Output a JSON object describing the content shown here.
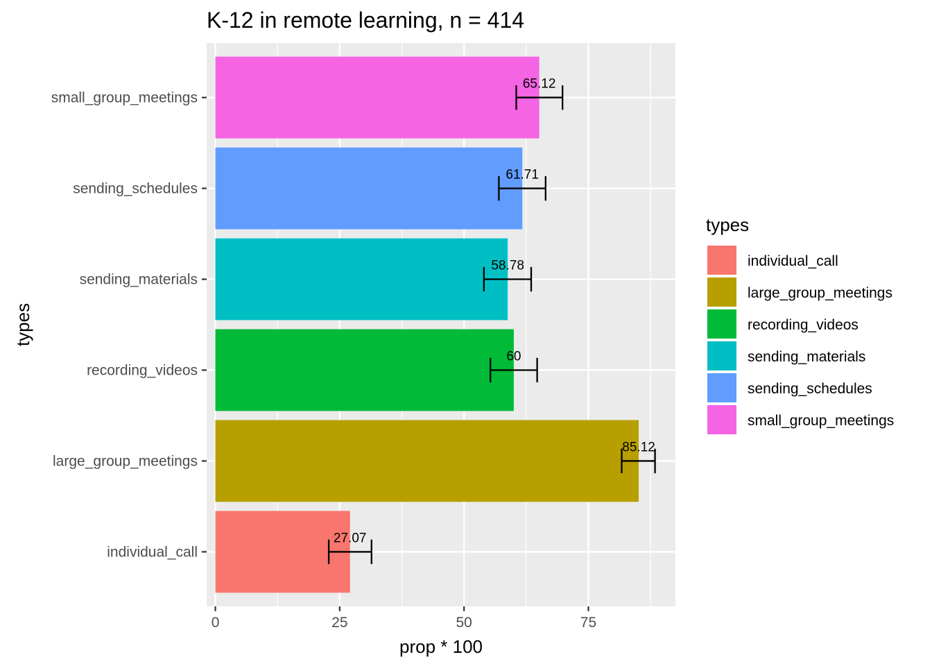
{
  "chart_data": {
    "type": "bar",
    "orientation": "horizontal",
    "title": "K-12 in remote learning, n = 414",
    "xlabel": "prop * 100",
    "ylabel": "types",
    "xlim": [
      -1.75,
      92.5
    ],
    "xticks": [
      0,
      25,
      50,
      75
    ],
    "categories": [
      "individual_call",
      "large_group_meetings",
      "recording_videos",
      "sending_materials",
      "sending_schedules",
      "small_group_meetings"
    ],
    "values": [
      27.07,
      85.12,
      60,
      58.78,
      61.71,
      65.12
    ],
    "value_labels": [
      "27.07",
      "85.12",
      "60",
      "58.78",
      "61.71",
      "65.12"
    ],
    "error_low": [
      22.8,
      81.7,
      55.3,
      54.0,
      57.0,
      60.5
    ],
    "error_high": [
      31.4,
      88.4,
      64.7,
      63.5,
      66.4,
      69.8
    ],
    "colors": [
      "#F8766D",
      "#B79F00",
      "#00BA38",
      "#00BFC4",
      "#619CFF",
      "#F564E3"
    ],
    "grid": true,
    "panel_background": "#EBEBEB",
    "legend": {
      "title": "types",
      "position": "right",
      "entries": [
        "individual_call",
        "large_group_meetings",
        "recording_videos",
        "sending_materials",
        "sending_schedules",
        "small_group_meetings"
      ]
    }
  }
}
